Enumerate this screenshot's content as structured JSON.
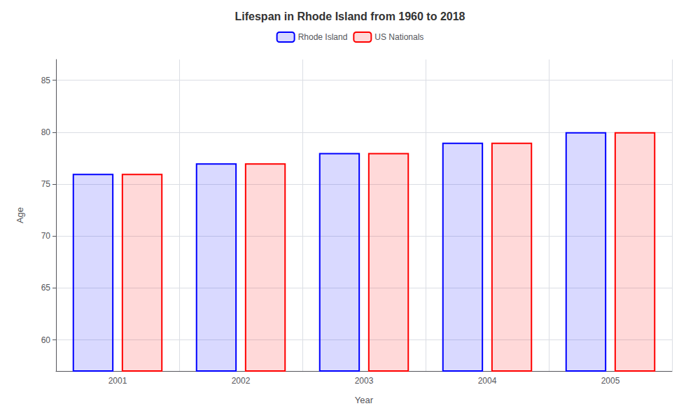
{
  "chart_data": {
    "type": "bar",
    "title": "Lifespan in Rhode Island from 1960 to 2018",
    "xlabel": "Year",
    "ylabel": "Age",
    "categories": [
      "2001",
      "2002",
      "2003",
      "2004",
      "2005"
    ],
    "series": [
      {
        "name": "Rhode Island",
        "color": "#0000ff",
        "values": [
          76.0,
          77.0,
          78.0,
          79.0,
          80.0
        ]
      },
      {
        "name": "US Nationals",
        "color": "#ff0000",
        "values": [
          76.0,
          77.0,
          78.0,
          79.0,
          80.0
        ]
      }
    ],
    "ylim": [
      57,
      87
    ],
    "yticks": [
      60,
      65,
      70,
      75,
      80,
      85
    ],
    "grid": true,
    "legend": "top"
  }
}
